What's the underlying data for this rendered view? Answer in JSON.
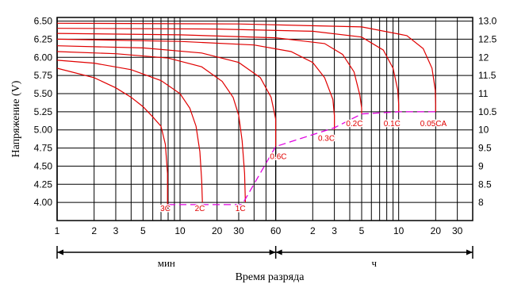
{
  "chart_data": {
    "type": "line",
    "ylabel": "Напряжение (V)",
    "xlabel": "Время разряда",
    "x_scale": "log",
    "x_unit_note": "x values expressed in minutes (60 = 1 h)",
    "xlim": [
      1,
      2400
    ],
    "ylim_left": [
      3.75,
      6.55
    ],
    "ylim_right": [
      7.5,
      13.1
    ],
    "left_ticks": [
      "6.50",
      "6.25",
      "6.00",
      "5.75",
      "5.50",
      "5.25",
      "5.00",
      "4.75",
      "4.50",
      "4.25",
      "4.00"
    ],
    "left_tick_values": [
      6.5,
      6.25,
      6.0,
      5.75,
      5.5,
      5.25,
      5.0,
      4.75,
      4.5,
      4.25,
      4.0
    ],
    "right_ticks": [
      "13.0",
      "12.5",
      "12",
      "11.5",
      "11",
      "10.5",
      "10",
      "9.5",
      "9",
      "8.5",
      "8"
    ],
    "right_tick_values": [
      13.0,
      12.5,
      12.0,
      11.5,
      11.0,
      10.5,
      10.0,
      9.5,
      9.0,
      8.5,
      8.0
    ],
    "x_tick_labels_min": [
      {
        "label": "1",
        "x": 1
      },
      {
        "label": "2",
        "x": 2
      },
      {
        "label": "3",
        "x": 3
      },
      {
        "label": "5",
        "x": 5
      },
      {
        "label": "10",
        "x": 10
      },
      {
        "label": "20",
        "x": 20
      },
      {
        "label": "30",
        "x": 30
      },
      {
        "label": "60",
        "x": 60
      }
    ],
    "x_tick_labels_h": [
      {
        "label": "2",
        "x": 120
      },
      {
        "label": "3",
        "x": 180
      },
      {
        "label": "5",
        "x": 300
      },
      {
        "label": "10",
        "x": 600
      },
      {
        "label": "20",
        "x": 1200
      },
      {
        "label": "30",
        "x": 1800
      }
    ],
    "unit_labels": {
      "min": "мин",
      "h": "ч"
    },
    "grid": true,
    "curve_color": "#e00000",
    "cutoff_color": "#e000e0",
    "series": [
      {
        "name": "3C",
        "x": [
          1,
          2,
          3,
          4,
          5,
          6,
          7,
          7.6,
          7.9,
          7.9
        ],
        "y": [
          5.85,
          5.72,
          5.58,
          5.45,
          5.32,
          5.18,
          5.05,
          4.8,
          4.4,
          3.92
        ]
      },
      {
        "name": "2C",
        "x": [
          1,
          2,
          4,
          7,
          10,
          12,
          13.5,
          14.5,
          15,
          15.2
        ],
        "y": [
          5.96,
          5.92,
          5.83,
          5.68,
          5.5,
          5.3,
          5.05,
          4.7,
          4.3,
          4.0
        ]
      },
      {
        "name": "1C",
        "x": [
          1,
          3,
          8,
          15,
          22,
          27,
          30,
          32,
          33.5,
          34
        ],
        "y": [
          6.08,
          6.05,
          5.99,
          5.87,
          5.67,
          5.45,
          5.2,
          4.85,
          4.4,
          4.0
        ]
      },
      {
        "name": "0.6C",
        "x": [
          1,
          5,
          15,
          30,
          45,
          55,
          60,
          60
        ],
        "y": [
          6.16,
          6.13,
          6.06,
          5.93,
          5.72,
          5.45,
          5.15,
          4.77
        ]
      },
      {
        "name": "0.3C",
        "x": [
          1,
          10,
          40,
          80,
          120,
          150,
          175,
          180,
          180
        ],
        "y": [
          6.25,
          6.22,
          6.17,
          6.08,
          5.93,
          5.72,
          5.42,
          5.2,
          5.0
        ]
      },
      {
        "name": "0.2C",
        "x": [
          1,
          10,
          60,
          150,
          210,
          260,
          290,
          300,
          300
        ],
        "y": [
          6.33,
          6.31,
          6.27,
          6.19,
          6.04,
          5.8,
          5.48,
          5.3,
          5.22
        ]
      },
      {
        "name": "0.1C",
        "x": [
          1,
          20,
          120,
          300,
          450,
          540,
          590,
          600,
          600
        ],
        "y": [
          6.4,
          6.39,
          6.36,
          6.28,
          6.1,
          5.85,
          5.55,
          5.35,
          5.25
        ]
      },
      {
        "name": "0.05CA",
        "x": [
          1,
          30,
          300,
          700,
          950,
          1120,
          1190,
          1200,
          1200
        ],
        "y": [
          6.47,
          6.46,
          6.42,
          6.3,
          6.12,
          5.85,
          5.55,
          5.35,
          5.25
        ]
      }
    ],
    "cutoff_line": {
      "x": [
        8,
        15,
        32,
        60,
        180,
        300,
        600,
        1200
      ],
      "y": [
        3.97,
        3.97,
        3.97,
        4.77,
        5.03,
        5.22,
        5.25,
        5.25
      ]
    },
    "annotations": [
      {
        "text": "3C",
        "x": 7.6,
        "y": 3.88
      },
      {
        "text": "2C",
        "x": 14.5,
        "y": 3.88
      },
      {
        "text": "1C",
        "x": 31,
        "y": 3.88
      },
      {
        "text": "0.6C",
        "x": 63,
        "y": 4.6
      },
      {
        "text": "0.3C",
        "x": 155,
        "y": 4.85
      },
      {
        "text": "0.2C",
        "x": 262,
        "y": 5.05
      },
      {
        "text": "0.1C",
        "x": 530,
        "y": 5.05
      },
      {
        "text": "0.05CA",
        "x": 1150,
        "y": 5.05
      }
    ]
  }
}
